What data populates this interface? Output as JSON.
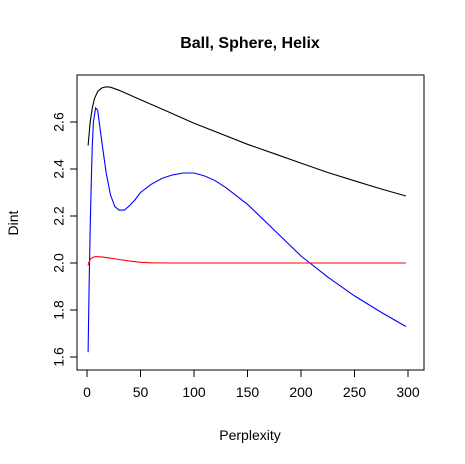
{
  "chart_data": {
    "type": "line",
    "title": "Ball, Sphere, Helix",
    "xlabel": "Perplexity",
    "ylabel": "Dint",
    "xlim": [
      0,
      300
    ],
    "ylim": [
      1.6,
      2.75
    ],
    "xticks": [
      0,
      50,
      100,
      150,
      200,
      250,
      300
    ],
    "yticks": [
      1.6,
      1.8,
      2.0,
      2.2,
      2.4,
      2.6
    ],
    "grid": false,
    "legend": "none",
    "series": [
      {
        "color": "#000000",
        "x": [
          1,
          3,
          5,
          7,
          10,
          14,
          18,
          22,
          30,
          40,
          50,
          60,
          75,
          100,
          125,
          150,
          175,
          200,
          225,
          250,
          275,
          298
        ],
        "y": [
          2.5,
          2.6,
          2.66,
          2.7,
          2.73,
          2.745,
          2.75,
          2.748,
          2.735,
          2.715,
          2.695,
          2.675,
          2.645,
          2.595,
          2.55,
          2.505,
          2.465,
          2.425,
          2.385,
          2.35,
          2.315,
          2.285
        ]
      },
      {
        "color": "#0000ff",
        "x": [
          1,
          2,
          3,
          4,
          5,
          6,
          8,
          10,
          12,
          15,
          18,
          22,
          26,
          30,
          35,
          40,
          45,
          50,
          60,
          70,
          80,
          90,
          100,
          110,
          120,
          130,
          150,
          175,
          200,
          225,
          250,
          275,
          298
        ],
        "y": [
          1.62,
          1.9,
          2.15,
          2.35,
          2.5,
          2.6,
          2.66,
          2.65,
          2.58,
          2.48,
          2.38,
          2.29,
          2.24,
          2.225,
          2.225,
          2.245,
          2.27,
          2.3,
          2.335,
          2.36,
          2.375,
          2.383,
          2.383,
          2.37,
          2.35,
          2.32,
          2.25,
          2.14,
          2.03,
          1.94,
          1.86,
          1.79,
          1.73
        ]
      },
      {
        "color": "#ff0000",
        "x": [
          1,
          2,
          3,
          4,
          6,
          8,
          10,
          15,
          20,
          30,
          40,
          50,
          60,
          80,
          100,
          150,
          200,
          250,
          298
        ],
        "y": [
          1.99,
          2.005,
          2.015,
          2.02,
          2.025,
          2.027,
          2.027,
          2.025,
          2.022,
          2.015,
          2.008,
          2.003,
          2.001,
          2.0,
          2.0,
          2.0,
          2.0,
          2.0,
          2.0
        ]
      }
    ]
  }
}
